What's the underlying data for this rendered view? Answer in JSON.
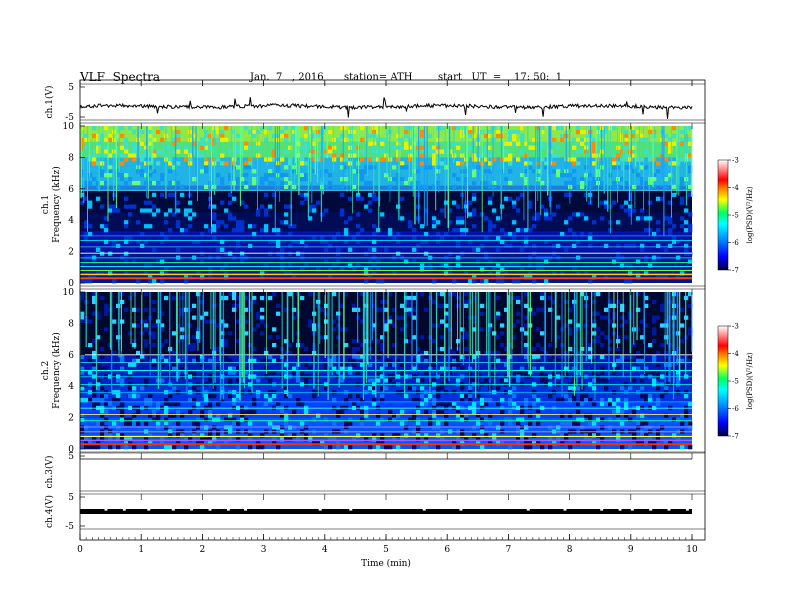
{
  "header": {
    "title": "VLF  Spectra",
    "date": "Jan.  7   , 2016",
    "station": "station= ATH",
    "start": "start   UT  =    17: 50:  1"
  },
  "chart_data": [
    {
      "type": "line",
      "panel": "ch1-waveform",
      "ylabel": "ch.1(V)",
      "ylim": [
        -5,
        5
      ],
      "yticks": [
        "5",
        "-5"
      ],
      "xlim": [
        0,
        10
      ],
      "description_level": "baseline near -2 V with short noisy spikes"
    },
    {
      "type": "heatmap",
      "panel": "ch1-spectrogram",
      "ylabel_top": "ch.1",
      "ylabel": "Frequency  (kHz)",
      "ylim": [
        0,
        10
      ],
      "yticks": [
        "0",
        "2",
        "4",
        "6",
        "8",
        "10"
      ],
      "xlim": [
        0,
        10
      ],
      "colorbar": {
        "label": "log(PSD)(V²/Hz)",
        "range": [
          -7,
          -3
        ],
        "ticks": [
          "-3",
          "-4",
          "-5",
          "-6",
          "-7"
        ]
      }
    },
    {
      "type": "heatmap",
      "panel": "ch2-spectrogram",
      "ylabel_top": "ch.2",
      "ylabel": "Frequency  (kHz)",
      "ylim": [
        0,
        10
      ],
      "yticks": [
        "0",
        "2",
        "4",
        "6",
        "8",
        "10"
      ],
      "xlim": [
        0,
        10
      ],
      "colorbar": {
        "label": "log(PSD)(V²/Hz)",
        "range": [
          -7,
          -3
        ],
        "ticks": [
          "-3",
          "-4",
          "-5",
          "-6",
          "-7"
        ]
      }
    },
    {
      "type": "line",
      "panel": "ch3-waveform",
      "ylabel": "ch.3(V)",
      "ylim": [
        -5,
        5
      ],
      "yticks": [
        "5"
      ],
      "xlim": [
        0,
        10
      ]
    },
    {
      "type": "line",
      "panel": "ch4-waveform",
      "ylabel": "ch.4(V)",
      "ylim": [
        -5,
        5
      ],
      "yticks": [
        "5",
        "-5"
      ],
      "xlim": [
        0,
        10
      ]
    }
  ],
  "xaxis": {
    "label": "Time  (min)",
    "ticks": [
      "0",
      "1",
      "2",
      "3",
      "4",
      "5",
      "6",
      "7",
      "8",
      "9",
      "10"
    ]
  },
  "colors": {
    "scale": [
      "#000066",
      "#0000ff",
      "#00a0ff",
      "#00ffff",
      "#00ff80",
      "#ffff00",
      "#ff8000",
      "#ff0000",
      "#ff9999",
      "#ffffff"
    ]
  }
}
